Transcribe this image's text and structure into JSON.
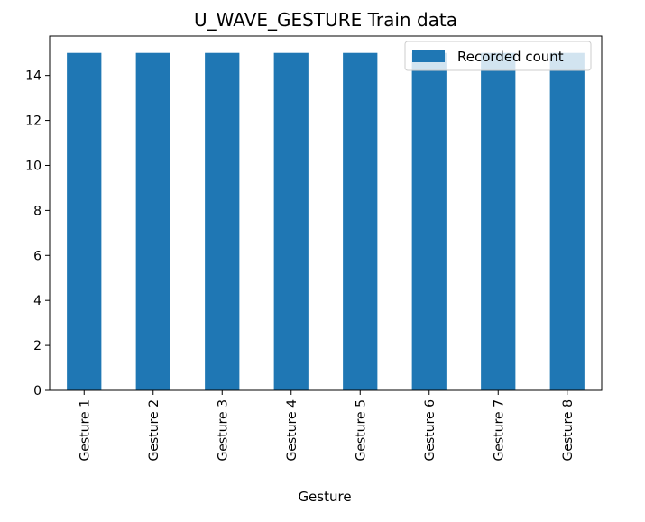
{
  "chart_data": {
    "type": "bar",
    "title": "U_WAVE_GESTURE Train data",
    "xlabel": "Gesture",
    "ylabel": "",
    "categories": [
      "Gesture 1",
      "Gesture 2",
      "Gesture 3",
      "Gesture 4",
      "Gesture 5",
      "Gesture 6",
      "Gesture 7",
      "Gesture 8"
    ],
    "series": [
      {
        "name": "Recorded count",
        "values": [
          15,
          15,
          15,
          15,
          15,
          15,
          15,
          15
        ],
        "color": "#1f77b4"
      }
    ],
    "ylim": [
      0,
      15.75
    ],
    "yticks": [
      0,
      2,
      4,
      6,
      8,
      10,
      12,
      14
    ],
    "ytick_labels": [
      "0",
      "2",
      "4",
      "6",
      "8",
      "10",
      "12",
      "14"
    ],
    "legend_position": "top-right",
    "grid": false
  }
}
